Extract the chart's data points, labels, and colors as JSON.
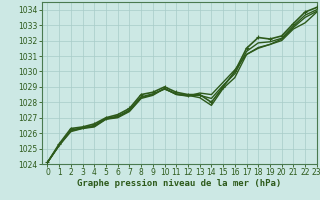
{
  "title": "Graphe pression niveau de la mer (hPa)",
  "bg_color": "#cce8e4",
  "line_color": "#2d5a1b",
  "grid_color": "#a8ccc8",
  "spine_color": "#4a7a50",
  "xlim": [
    -0.5,
    23
  ],
  "ylim": [
    1024.0,
    1034.5
  ],
  "yticks": [
    1024,
    1025,
    1026,
    1027,
    1028,
    1029,
    1030,
    1031,
    1032,
    1033,
    1034
  ],
  "xticks": [
    0,
    1,
    2,
    3,
    4,
    5,
    6,
    7,
    8,
    9,
    10,
    11,
    12,
    13,
    14,
    15,
    16,
    17,
    18,
    19,
    20,
    21,
    22,
    23
  ],
  "series": [
    {
      "x": [
        0,
        1,
        2,
        3,
        4,
        5,
        6,
        7,
        8,
        9,
        10,
        11,
        12,
        13,
        14,
        15,
        16,
        17,
        18,
        19,
        20,
        21,
        22,
        23
      ],
      "y": [
        1024.1,
        1025.3,
        1026.3,
        1026.4,
        1026.6,
        1027.0,
        1027.2,
        1027.6,
        1028.5,
        1028.65,
        1029.0,
        1028.65,
        1028.5,
        1028.5,
        1028.0,
        1029.0,
        1030.0,
        1031.5,
        1032.2,
        1032.1,
        1032.3,
        1033.1,
        1033.85,
        1034.15
      ],
      "linewidth": 1.2,
      "linestyle": "-",
      "with_markers": true
    },
    {
      "x": [
        0,
        1,
        2,
        3,
        4,
        5,
        6,
        7,
        8,
        9,
        10,
        11,
        12,
        13,
        14,
        15,
        16,
        17,
        18,
        19,
        20,
        21,
        22,
        23
      ],
      "y": [
        1024.1,
        1025.2,
        1026.2,
        1026.35,
        1026.5,
        1026.95,
        1027.1,
        1027.5,
        1028.35,
        1028.55,
        1028.85,
        1028.55,
        1028.45,
        1028.3,
        1027.8,
        1028.9,
        1029.6,
        1031.1,
        1031.5,
        1031.75,
        1032.1,
        1032.85,
        1033.5,
        1033.9
      ],
      "linewidth": 1.0,
      "linestyle": "-",
      "with_markers": false
    },
    {
      "x": [
        0,
        1,
        2,
        3,
        4,
        5,
        6,
        7,
        8,
        9,
        10,
        11,
        12,
        13,
        14,
        15,
        16,
        17,
        18,
        19,
        20,
        21,
        22,
        23
      ],
      "y": [
        1024.1,
        1025.2,
        1026.1,
        1026.3,
        1026.4,
        1026.9,
        1027.0,
        1027.4,
        1028.25,
        1028.45,
        1028.9,
        1028.5,
        1028.4,
        1028.6,
        1028.5,
        1029.3,
        1030.1,
        1031.1,
        1031.55,
        1031.75,
        1032.0,
        1032.75,
        1033.15,
        1033.85
      ],
      "linewidth": 1.0,
      "linestyle": "-",
      "with_markers": false
    },
    {
      "x": [
        0,
        1,
        2,
        3,
        4,
        5,
        6,
        7,
        8,
        9,
        10,
        11,
        12,
        13,
        14,
        15,
        16,
        17,
        18,
        19,
        20,
        21,
        22,
        23
      ],
      "y": [
        1024.1,
        1025.25,
        1026.15,
        1026.32,
        1026.45,
        1026.92,
        1027.05,
        1027.45,
        1028.3,
        1028.5,
        1028.88,
        1028.52,
        1028.42,
        1028.45,
        1028.25,
        1029.1,
        1029.85,
        1031.3,
        1031.85,
        1031.92,
        1032.15,
        1032.95,
        1033.65,
        1034.0
      ],
      "linewidth": 1.0,
      "linestyle": "-",
      "with_markers": false
    }
  ],
  "marker_style": "+",
  "markersize": 3.5,
  "tick_fontsize": 5.5,
  "xlabel_fontsize": 6.5
}
